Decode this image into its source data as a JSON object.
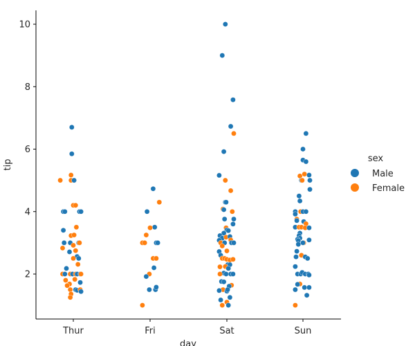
{
  "chart_data": {
    "type": "scatter",
    "subtype": "stripplot",
    "title": "",
    "xlabel": "day",
    "ylabel": "tip",
    "categories": [
      "Thur",
      "Fri",
      "Sat",
      "Sun"
    ],
    "ylim": [
      0.55,
      10.45
    ],
    "yticks": [
      2,
      4,
      6,
      8,
      10
    ],
    "grid": false,
    "legend": {
      "title": "sex",
      "placement": "right",
      "entries": [
        {
          "label": "Male",
          "color": "#1f77b4"
        },
        {
          "label": "Female",
          "color": "#ff7f0e"
        }
      ]
    },
    "series_colors": {
      "Male": "#1f77b4",
      "Female": "#ff7f0e"
    },
    "points_note": "each point: [category index, jitter offset in category units, tip, sex]",
    "points": [
      [
        0,
        -0.02,
        6.7,
        "Male"
      ],
      [
        0,
        -0.02,
        5.85,
        "Male"
      ],
      [
        0,
        -0.03,
        5.17,
        "Female"
      ],
      [
        0,
        -0.17,
        5.0,
        "Female"
      ],
      [
        0,
        -0.03,
        5.0,
        "Female"
      ],
      [
        0,
        0.01,
        5.0,
        "Male"
      ],
      [
        0,
        0.0,
        4.2,
        "Female"
      ],
      [
        0,
        0.03,
        4.2,
        "Female"
      ],
      [
        0,
        -0.13,
        4.0,
        "Male"
      ],
      [
        0,
        -0.11,
        4.0,
        "Male"
      ],
      [
        0,
        0.08,
        4.0,
        "Male"
      ],
      [
        0,
        0.1,
        4.0,
        "Male"
      ],
      [
        0,
        -0.13,
        3.4,
        "Male"
      ],
      [
        0,
        0.04,
        3.5,
        "Female"
      ],
      [
        0,
        -0.03,
        3.23,
        "Female"
      ],
      [
        0,
        0.01,
        3.25,
        "Female"
      ],
      [
        0,
        -0.12,
        3.0,
        "Male"
      ],
      [
        0,
        -0.04,
        3.0,
        "Male"
      ],
      [
        0,
        0.07,
        3.0,
        "Male"
      ],
      [
        0,
        0.08,
        3.0,
        "Female"
      ],
      [
        0,
        -0.14,
        2.83,
        "Female"
      ],
      [
        0,
        0.0,
        2.92,
        "Female"
      ],
      [
        0,
        -0.05,
        2.71,
        "Male"
      ],
      [
        0,
        0.03,
        2.75,
        "Female"
      ],
      [
        0,
        0.05,
        2.56,
        "Male"
      ],
      [
        0,
        0.07,
        2.5,
        "Male"
      ],
      [
        0,
        0.0,
        2.5,
        "Female"
      ],
      [
        0,
        0.06,
        2.31,
        "Female"
      ],
      [
        0,
        -0.09,
        2.18,
        "Male"
      ],
      [
        0,
        -0.14,
        2.0,
        "Female"
      ],
      [
        0,
        -0.11,
        2.0,
        "Male"
      ],
      [
        0,
        -0.04,
        2.0,
        "Female"
      ],
      [
        0,
        -0.01,
        2.0,
        "Male"
      ],
      [
        0,
        0.03,
        2.0,
        "Female"
      ],
      [
        0,
        0.05,
        2.0,
        "Male"
      ],
      [
        0,
        0.09,
        2.0,
        "Male"
      ],
      [
        0,
        0.1,
        2.0,
        "Female"
      ],
      [
        0,
        -0.1,
        1.8,
        "Female"
      ],
      [
        0,
        -0.05,
        1.68,
        "Female"
      ],
      [
        0,
        -0.08,
        1.63,
        "Female"
      ],
      [
        0,
        0.02,
        1.83,
        "Female"
      ],
      [
        0,
        0.09,
        1.73,
        "Male"
      ],
      [
        0,
        -0.04,
        1.5,
        "Female"
      ],
      [
        0,
        0.03,
        1.5,
        "Male"
      ],
      [
        0,
        0.05,
        1.48,
        "Male"
      ],
      [
        0,
        0.09,
        1.5,
        "Female"
      ],
      [
        0,
        0.1,
        1.44,
        "Male"
      ],
      [
        0,
        -0.03,
        1.36,
        "Female"
      ],
      [
        0,
        -0.04,
        1.25,
        "Female"
      ],
      [
        1,
        0.04,
        4.73,
        "Male"
      ],
      [
        1,
        0.12,
        4.3,
        "Female"
      ],
      [
        1,
        -0.04,
        4.0,
        "Male"
      ],
      [
        1,
        0.06,
        3.5,
        "Male"
      ],
      [
        1,
        0.0,
        3.48,
        "Female"
      ],
      [
        1,
        -0.05,
        3.25,
        "Female"
      ],
      [
        1,
        -0.1,
        3.0,
        "Female"
      ],
      [
        1,
        -0.07,
        3.0,
        "Female"
      ],
      [
        1,
        0.08,
        3.0,
        "Male"
      ],
      [
        1,
        0.1,
        3.0,
        "Male"
      ],
      [
        1,
        0.04,
        2.5,
        "Female"
      ],
      [
        1,
        0.08,
        2.5,
        "Female"
      ],
      [
        1,
        0.05,
        2.2,
        "Male"
      ],
      [
        1,
        -0.01,
        2.0,
        "Female"
      ],
      [
        1,
        -0.05,
        1.92,
        "Male"
      ],
      [
        1,
        -0.01,
        1.5,
        "Male"
      ],
      [
        1,
        0.07,
        1.5,
        "Male"
      ],
      [
        1,
        0.08,
        1.58,
        "Male"
      ],
      [
        1,
        -0.1,
        1.0,
        "Female"
      ],
      [
        2,
        -0.02,
        10.0,
        "Male"
      ],
      [
        2,
        -0.06,
        9.0,
        "Male"
      ],
      [
        2,
        0.08,
        7.58,
        "Male"
      ],
      [
        2,
        0.05,
        6.73,
        "Male"
      ],
      [
        2,
        0.09,
        6.5,
        "Female"
      ],
      [
        2,
        -0.04,
        5.92,
        "Male"
      ],
      [
        2,
        -0.1,
        5.16,
        "Male"
      ],
      [
        2,
        -0.02,
        5.0,
        "Female"
      ],
      [
        2,
        0.05,
        4.67,
        "Female"
      ],
      [
        2,
        -0.02,
        4.3,
        "Male"
      ],
      [
        2,
        -0.01,
        4.3,
        "Male"
      ],
      [
        2,
        -0.05,
        4.08,
        "Female"
      ],
      [
        2,
        -0.04,
        4.06,
        "Male"
      ],
      [
        2,
        0.07,
        4.0,
        "Female"
      ],
      [
        2,
        -0.03,
        3.76,
        "Male"
      ],
      [
        2,
        0.09,
        3.76,
        "Male"
      ],
      [
        2,
        0.08,
        3.6,
        "Male"
      ],
      [
        2,
        -0.01,
        3.48,
        "Female"
      ],
      [
        2,
        0.0,
        3.41,
        "Male"
      ],
      [
        2,
        0.02,
        3.39,
        "Male"
      ],
      [
        2,
        -0.04,
        3.31,
        "Male"
      ],
      [
        2,
        -0.09,
        3.23,
        "Male"
      ],
      [
        2,
        -0.06,
        3.15,
        "Male"
      ],
      [
        2,
        -0.01,
        3.18,
        "Female"
      ],
      [
        2,
        0.04,
        3.2,
        "Male"
      ],
      [
        2,
        0.05,
        3.09,
        "Female"
      ],
      [
        2,
        -0.1,
        3.08,
        "Male"
      ],
      [
        2,
        -0.08,
        3.0,
        "Female"
      ],
      [
        2,
        -0.03,
        3.0,
        "Male"
      ],
      [
        2,
        0.06,
        3.0,
        "Male"
      ],
      [
        2,
        0.09,
        3.0,
        "Male"
      ],
      [
        2,
        -0.06,
        2.9,
        "Female"
      ],
      [
        2,
        0.0,
        2.74,
        "Female"
      ],
      [
        2,
        -0.1,
        2.72,
        "Male"
      ],
      [
        2,
        -0.08,
        2.6,
        "Male"
      ],
      [
        2,
        -0.06,
        2.5,
        "Female"
      ],
      [
        2,
        -0.03,
        2.5,
        "Female"
      ],
      [
        2,
        0.0,
        2.47,
        "Female"
      ],
      [
        2,
        0.04,
        2.45,
        "Female"
      ],
      [
        2,
        0.08,
        2.47,
        "Female"
      ],
      [
        2,
        0.01,
        2.3,
        "Male"
      ],
      [
        2,
        0.04,
        2.3,
        "Male"
      ],
      [
        2,
        -0.09,
        2.23,
        "Female"
      ],
      [
        2,
        -0.02,
        2.24,
        "Female"
      ],
      [
        2,
        0.02,
        2.18,
        "Male"
      ],
      [
        2,
        -0.04,
        2.03,
        "Male"
      ],
      [
        2,
        -0.01,
        2.0,
        "Male"
      ],
      [
        2,
        -0.09,
        2.0,
        "Female"
      ],
      [
        2,
        0.05,
        2.0,
        "Male"
      ],
      [
        2,
        0.08,
        2.0,
        "Male"
      ],
      [
        2,
        -0.07,
        1.76,
        "Male"
      ],
      [
        2,
        -0.04,
        1.75,
        "Male"
      ],
      [
        2,
        0.06,
        1.64,
        "Female"
      ],
      [
        2,
        0.03,
        1.61,
        "Male"
      ],
      [
        2,
        -0.05,
        1.5,
        "Female"
      ],
      [
        2,
        -0.1,
        1.47,
        "Male"
      ],
      [
        2,
        0.0,
        1.45,
        "Male"
      ],
      [
        2,
        0.01,
        1.5,
        "Male"
      ],
      [
        2,
        0.04,
        1.25,
        "Male"
      ],
      [
        2,
        -0.08,
        1.17,
        "Male"
      ],
      [
        2,
        0.0,
        1.1,
        "Female"
      ],
      [
        2,
        -0.06,
        1.0,
        "Female"
      ],
      [
        2,
        0.02,
        1.0,
        "Male"
      ],
      [
        3,
        0.04,
        6.5,
        "Male"
      ],
      [
        3,
        0.0,
        6.0,
        "Male"
      ],
      [
        3,
        0.0,
        5.65,
        "Male"
      ],
      [
        3,
        0.04,
        5.6,
        "Male"
      ],
      [
        3,
        -0.04,
        5.14,
        "Female"
      ],
      [
        3,
        0.02,
        5.2,
        "Female"
      ],
      [
        3,
        0.08,
        5.17,
        "Male"
      ],
      [
        3,
        -0.02,
        5.0,
        "Male"
      ],
      [
        3,
        -0.01,
        5.0,
        "Female"
      ],
      [
        3,
        0.09,
        5.0,
        "Male"
      ],
      [
        3,
        0.09,
        4.71,
        "Male"
      ],
      [
        3,
        -0.05,
        4.5,
        "Male"
      ],
      [
        3,
        -0.04,
        4.34,
        "Male"
      ],
      [
        3,
        -0.1,
        4.0,
        "Male"
      ],
      [
        3,
        -0.03,
        4.0,
        "Female"
      ],
      [
        3,
        0.0,
        4.0,
        "Male"
      ],
      [
        3,
        0.04,
        4.0,
        "Male"
      ],
      [
        3,
        -0.1,
        3.92,
        "Male"
      ],
      [
        3,
        -0.08,
        3.76,
        "Female"
      ],
      [
        3,
        -0.08,
        3.71,
        "Male"
      ],
      [
        3,
        0.01,
        3.68,
        "Male"
      ],
      [
        3,
        0.04,
        3.61,
        "Female"
      ],
      [
        3,
        -0.1,
        3.5,
        "Male"
      ],
      [
        3,
        -0.05,
        3.5,
        "Female"
      ],
      [
        3,
        -0.02,
        3.5,
        "Female"
      ],
      [
        3,
        0.03,
        3.48,
        "Female"
      ],
      [
        3,
        0.08,
        3.48,
        "Male"
      ],
      [
        3,
        -0.04,
        3.31,
        "Male"
      ],
      [
        3,
        -0.05,
        3.23,
        "Male"
      ],
      [
        3,
        -0.04,
        3.15,
        "Male"
      ],
      [
        3,
        -0.07,
        3.11,
        "Male"
      ],
      [
        3,
        0.08,
        3.09,
        "Male"
      ],
      [
        3,
        -0.06,
        3.07,
        "Male"
      ],
      [
        3,
        0.01,
        3.0,
        "Female"
      ],
      [
        3,
        0.0,
        3.0,
        "Male"
      ],
      [
        3,
        -0.06,
        2.95,
        "Male"
      ],
      [
        3,
        -0.08,
        2.73,
        "Male"
      ],
      [
        3,
        -0.02,
        2.6,
        "Female"
      ],
      [
        3,
        0.03,
        2.55,
        "Male"
      ],
      [
        3,
        0.06,
        2.5,
        "Male"
      ],
      [
        3,
        -0.09,
        2.55,
        "Male"
      ],
      [
        3,
        -0.1,
        2.24,
        "Male"
      ],
      [
        3,
        -0.07,
        2.0,
        "Male"
      ],
      [
        3,
        -0.03,
        2.0,
        "Male"
      ],
      [
        3,
        -0.01,
        2.05,
        "Male"
      ],
      [
        3,
        0.03,
        2.0,
        "Male"
      ],
      [
        3,
        0.07,
        2.0,
        "Male"
      ],
      [
        3,
        0.08,
        1.97,
        "Male"
      ],
      [
        3,
        -0.04,
        1.68,
        "Female"
      ],
      [
        3,
        -0.07,
        1.67,
        "Male"
      ],
      [
        3,
        0.02,
        1.57,
        "Male"
      ],
      [
        3,
        0.08,
        1.57,
        "Male"
      ],
      [
        3,
        -0.1,
        1.5,
        "Male"
      ],
      [
        3,
        0.05,
        1.32,
        "Male"
      ],
      [
        3,
        -0.1,
        1.0,
        "Female"
      ]
    ]
  }
}
